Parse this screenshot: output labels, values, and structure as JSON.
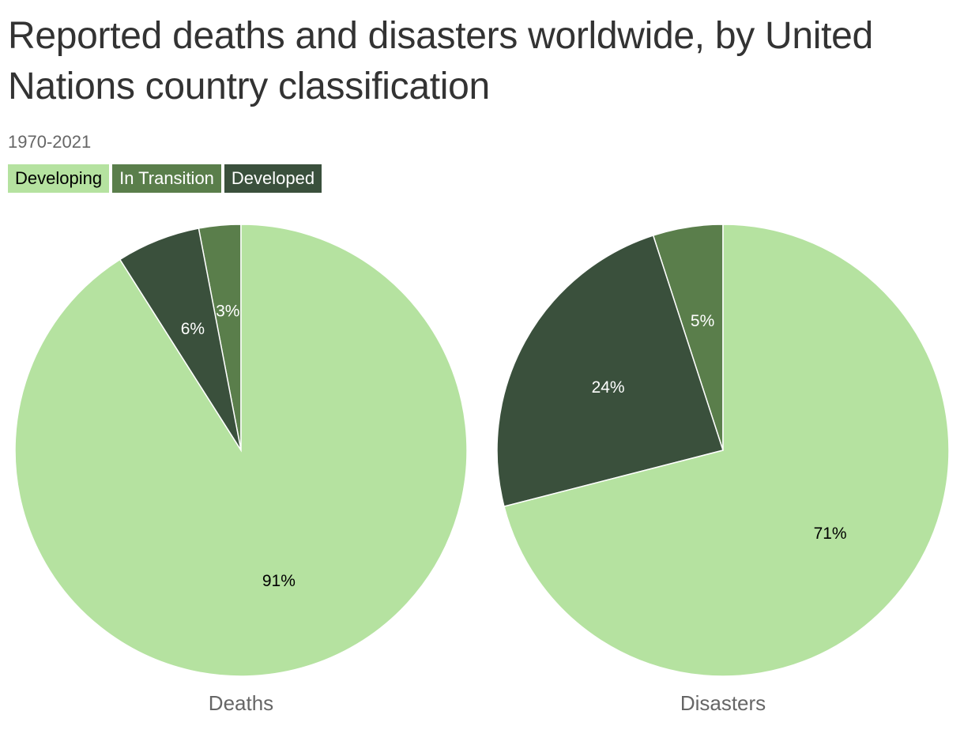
{
  "header": {
    "title": "Reported deaths and disasters worldwide, by United Nations country classification",
    "subtitle": "1970-2021"
  },
  "legend": [
    {
      "label": "Developing",
      "color": "#b5e2a0",
      "text_color": "#000000"
    },
    {
      "label": "In Transition",
      "color": "#5a7e4b",
      "text_color": "#ffffff"
    },
    {
      "label": "Developed",
      "color": "#3a503c",
      "text_color": "#ffffff"
    }
  ],
  "chart_data": [
    {
      "type": "pie",
      "title": "Deaths",
      "slices": [
        {
          "label": "Developing",
          "value": 91,
          "display": "91%",
          "color": "#b5e2a0",
          "label_color": "#000000"
        },
        {
          "label": "Developed",
          "value": 6,
          "display": "6%",
          "color": "#3a503c",
          "label_color": "#ffffff"
        },
        {
          "label": "In Transition",
          "value": 3,
          "display": "3%",
          "color": "#5a7e4b",
          "label_color": "#ffffff"
        }
      ]
    },
    {
      "type": "pie",
      "title": "Disasters",
      "slices": [
        {
          "label": "Developing",
          "value": 71,
          "display": "71%",
          "color": "#b5e2a0",
          "label_color": "#000000"
        },
        {
          "label": "Developed",
          "value": 24,
          "display": "24%",
          "color": "#3a503c",
          "label_color": "#ffffff"
        },
        {
          "label": "In Transition",
          "value": 5,
          "display": "5%",
          "color": "#5a7e4b",
          "label_color": "#ffffff"
        }
      ]
    }
  ]
}
